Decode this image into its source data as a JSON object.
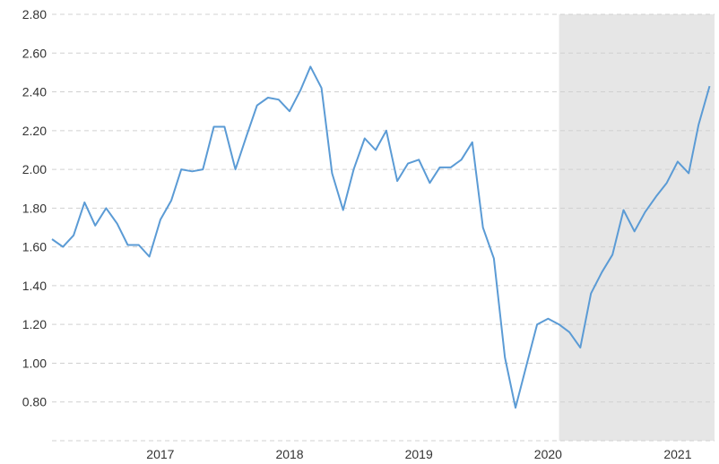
{
  "chart_data": {
    "type": "line",
    "title": "",
    "xlabel": "",
    "ylabel": "",
    "ylim": [
      0.6,
      2.8
    ],
    "grid": true,
    "legend": "none",
    "y_ticks": [
      "0.80",
      "1.00",
      "1.20",
      "1.40",
      "1.60",
      "1.80",
      "2.00",
      "2.20",
      "2.40",
      "2.60",
      "2.80"
    ],
    "x_ticks": [
      {
        "label": "2017",
        "date": "2017-01-01"
      },
      {
        "label": "2018",
        "date": "2018-01-01"
      },
      {
        "label": "2019",
        "date": "2019-01-01"
      },
      {
        "label": "2020",
        "date": "2020-01-01"
      },
      {
        "label": "2021",
        "date": "2021-01-01"
      }
    ],
    "x_range": [
      "2016-03-01",
      "2021-04-15"
    ],
    "shaded_region": {
      "start": "2020-02-01",
      "end": "2021-04-15",
      "color": "#e6e6e6"
    },
    "line_color": "#5b9bd5",
    "series": [
      {
        "x": [
          "2016-03-01",
          "2016-04-01",
          "2016-05-01",
          "2016-06-01",
          "2016-07-01",
          "2016-08-01",
          "2016-09-01",
          "2016-10-01",
          "2016-11-01",
          "2016-12-01",
          "2017-01-01",
          "2017-02-01",
          "2017-03-01",
          "2017-04-01",
          "2017-05-01",
          "2017-06-01",
          "2017-07-01",
          "2017-08-01",
          "2017-09-01",
          "2017-10-01",
          "2017-11-01",
          "2017-12-01",
          "2018-01-01",
          "2018-02-01",
          "2018-03-01",
          "2018-04-01",
          "2018-05-01",
          "2018-06-01",
          "2018-07-01",
          "2018-08-01",
          "2018-09-01",
          "2018-10-01",
          "2018-11-01",
          "2018-12-01",
          "2019-01-01",
          "2019-02-01",
          "2019-03-01",
          "2019-04-01",
          "2019-05-01",
          "2019-06-01",
          "2019-07-01",
          "2019-08-01",
          "2019-09-01",
          "2019-10-01",
          "2019-11-01",
          "2019-12-01",
          "2020-01-01",
          "2020-02-01",
          "2020-03-01",
          "2020-04-01",
          "2020-05-01",
          "2020-06-01",
          "2020-07-01",
          "2020-08-01",
          "2020-09-01",
          "2020-10-01",
          "2020-11-01",
          "2020-12-01",
          "2021-01-01",
          "2021-02-01",
          "2021-03-01",
          "2021-04-01"
        ],
        "values": [
          1.64,
          1.6,
          1.66,
          1.83,
          1.71,
          1.8,
          1.72,
          1.61,
          1.61,
          1.55,
          1.74,
          1.84,
          2.0,
          1.99,
          2.0,
          2.22,
          2.22,
          2.0,
          2.17,
          2.33,
          2.37,
          2.36,
          2.3,
          2.41,
          2.53,
          2.42,
          1.98,
          1.79,
          2.0,
          2.16,
          2.1,
          2.2,
          1.94,
          2.03,
          2.05,
          1.93,
          2.01,
          2.01,
          2.05,
          2.14,
          1.7,
          1.54,
          1.03,
          0.77,
          0.99,
          1.2,
          1.23,
          1.2,
          1.16,
          1.08,
          1.36,
          1.47,
          1.56,
          1.79,
          1.68,
          1.78,
          1.86,
          1.93,
          2.04,
          1.98,
          2.23,
          2.43
        ]
      }
    ]
  }
}
